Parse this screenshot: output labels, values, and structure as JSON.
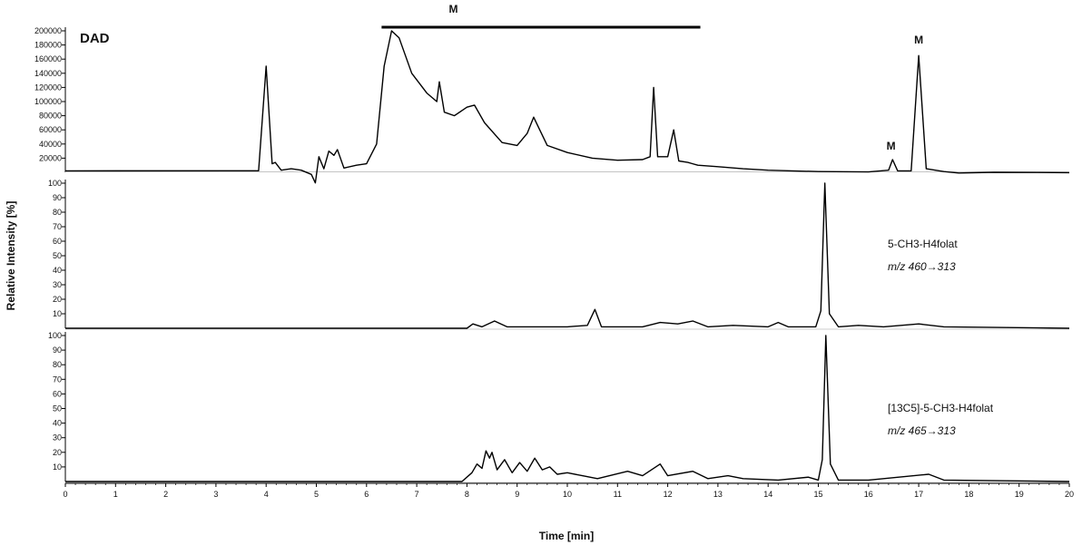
{
  "chart_data": {
    "type": "line",
    "xlabel": "Time [min]",
    "ylabel": "Relative Intensity [%]",
    "xlim": [
      0,
      20
    ],
    "x_ticks": [
      "0",
      "1",
      "2",
      "3",
      "4",
      "5",
      "6",
      "7",
      "8",
      "9",
      "10",
      "11",
      "12",
      "13",
      "14",
      "15",
      "16",
      "17",
      "18",
      "19",
      "20"
    ],
    "line_color": "#000000",
    "panels": [
      {
        "id": "dad",
        "title": "DAD",
        "ylim": [
          0,
          200000
        ],
        "y_ticks": [
          "20000",
          "40000",
          "60000",
          "80000",
          "100000",
          "120000",
          "140000",
          "160000",
          "180000",
          "200000"
        ],
        "baseline": 2000,
        "series": [
          {
            "x": 0,
            "y": 2000
          },
          {
            "x": 3.85,
            "y": 2200
          },
          {
            "x": 4.0,
            "y": 150000
          },
          {
            "x": 4.12,
            "y": 12000
          },
          {
            "x": 4.18,
            "y": 14000
          },
          {
            "x": 4.3,
            "y": 3000
          },
          {
            "x": 4.5,
            "y": 5000
          },
          {
            "x": 4.7,
            "y": 3000
          },
          {
            "x": 4.9,
            "y": -3000
          },
          {
            "x": 4.98,
            "y": -15000
          },
          {
            "x": 5.05,
            "y": 22000
          },
          {
            "x": 5.15,
            "y": 5000
          },
          {
            "x": 5.25,
            "y": 30000
          },
          {
            "x": 5.35,
            "y": 24000
          },
          {
            "x": 5.42,
            "y": 32000
          },
          {
            "x": 5.55,
            "y": 6000
          },
          {
            "x": 5.8,
            "y": 10000
          },
          {
            "x": 6.0,
            "y": 12000
          },
          {
            "x": 6.2,
            "y": 40000
          },
          {
            "x": 6.35,
            "y": 150000
          },
          {
            "x": 6.5,
            "y": 200000
          },
          {
            "x": 6.65,
            "y": 190000
          },
          {
            "x": 6.9,
            "y": 140000
          },
          {
            "x": 7.2,
            "y": 112000
          },
          {
            "x": 7.4,
            "y": 100000
          },
          {
            "x": 7.45,
            "y": 128000
          },
          {
            "x": 7.55,
            "y": 85000
          },
          {
            "x": 7.75,
            "y": 80000
          },
          {
            "x": 8.0,
            "y": 92000
          },
          {
            "x": 8.15,
            "y": 95000
          },
          {
            "x": 8.35,
            "y": 70000
          },
          {
            "x": 8.7,
            "y": 42000
          },
          {
            "x": 9.0,
            "y": 38000
          },
          {
            "x": 9.2,
            "y": 55000
          },
          {
            "x": 9.33,
            "y": 78000
          },
          {
            "x": 9.45,
            "y": 60000
          },
          {
            "x": 9.6,
            "y": 38000
          },
          {
            "x": 10.0,
            "y": 28000
          },
          {
            "x": 10.5,
            "y": 20000
          },
          {
            "x": 11.0,
            "y": 17000
          },
          {
            "x": 11.5,
            "y": 18000
          },
          {
            "x": 11.65,
            "y": 22000
          },
          {
            "x": 11.72,
            "y": 120000
          },
          {
            "x": 11.8,
            "y": 22000
          },
          {
            "x": 12.0,
            "y": 22000
          },
          {
            "x": 12.12,
            "y": 60000
          },
          {
            "x": 12.22,
            "y": 16000
          },
          {
            "x": 12.4,
            "y": 14000
          },
          {
            "x": 12.6,
            "y": 10000
          },
          {
            "x": 13.0,
            "y": 8000
          },
          {
            "x": 13.5,
            "y": 5000
          },
          {
            "x": 14.0,
            "y": 3000
          },
          {
            "x": 15.0,
            "y": 1000
          },
          {
            "x": 16.0,
            "y": 500
          },
          {
            "x": 16.4,
            "y": 3000
          },
          {
            "x": 16.48,
            "y": 18000
          },
          {
            "x": 16.58,
            "y": 2000
          },
          {
            "x": 16.85,
            "y": 2000
          },
          {
            "x": 17.0,
            "y": 165000
          },
          {
            "x": 17.15,
            "y": 5000
          },
          {
            "x": 17.5,
            "y": 1000
          },
          {
            "x": 17.8,
            "y": -1000
          },
          {
            "x": 18.5,
            "y": 0
          },
          {
            "x": 20,
            "y": -500
          }
        ],
        "annotations": [
          {
            "text": "M",
            "x": 7.73,
            "y_label": "bar",
            "x_start": 6.3,
            "x_end": 12.65
          },
          {
            "text": "M",
            "x": 16.45,
            "y": 32000
          },
          {
            "text": "M",
            "x": 17.0,
            "y": 182000
          }
        ]
      },
      {
        "id": "ms1",
        "ylim": [
          0,
          100
        ],
        "y_ticks": [
          "10",
          "20",
          "30",
          "40",
          "50",
          "60",
          "70",
          "80",
          "90",
          "100"
        ],
        "annotation_lines": [
          "5-CH3-H4folat",
          "m/z 460→313"
        ],
        "series": [
          {
            "x": 0,
            "y": 0
          },
          {
            "x": 8.0,
            "y": 0
          },
          {
            "x": 8.12,
            "y": 3
          },
          {
            "x": 8.3,
            "y": 1
          },
          {
            "x": 8.55,
            "y": 5
          },
          {
            "x": 8.8,
            "y": 1
          },
          {
            "x": 9.2,
            "y": 1
          },
          {
            "x": 10.0,
            "y": 1
          },
          {
            "x": 10.4,
            "y": 2
          },
          {
            "x": 10.55,
            "y": 13
          },
          {
            "x": 10.68,
            "y": 1
          },
          {
            "x": 11.5,
            "y": 1
          },
          {
            "x": 11.85,
            "y": 4
          },
          {
            "x": 12.2,
            "y": 3
          },
          {
            "x": 12.5,
            "y": 5
          },
          {
            "x": 12.8,
            "y": 1
          },
          {
            "x": 13.3,
            "y": 2
          },
          {
            "x": 14.0,
            "y": 1
          },
          {
            "x": 14.2,
            "y": 4
          },
          {
            "x": 14.4,
            "y": 1
          },
          {
            "x": 14.95,
            "y": 1
          },
          {
            "x": 15.05,
            "y": 12
          },
          {
            "x": 15.13,
            "y": 100
          },
          {
            "x": 15.22,
            "y": 10
          },
          {
            "x": 15.4,
            "y": 1
          },
          {
            "x": 15.8,
            "y": 2
          },
          {
            "x": 16.3,
            "y": 1
          },
          {
            "x": 17.0,
            "y": 3
          },
          {
            "x": 17.5,
            "y": 1
          },
          {
            "x": 20,
            "y": 0
          }
        ]
      },
      {
        "id": "ms2",
        "ylim": [
          0,
          100
        ],
        "y_ticks": [
          "10",
          "20",
          "30",
          "40",
          "50",
          "60",
          "70",
          "80",
          "90",
          "100"
        ],
        "annotation_lines": [
          "[13C5]-5-CH3-H4folat",
          "m/z 465→313"
        ],
        "series": [
          {
            "x": 0,
            "y": 0
          },
          {
            "x": 7.9,
            "y": 0
          },
          {
            "x": 8.1,
            "y": 6
          },
          {
            "x": 8.2,
            "y": 12
          },
          {
            "x": 8.3,
            "y": 9
          },
          {
            "x": 8.38,
            "y": 21
          },
          {
            "x": 8.45,
            "y": 16
          },
          {
            "x": 8.5,
            "y": 20
          },
          {
            "x": 8.6,
            "y": 8
          },
          {
            "x": 8.75,
            "y": 15
          },
          {
            "x": 8.9,
            "y": 6
          },
          {
            "x": 9.05,
            "y": 13
          },
          {
            "x": 9.2,
            "y": 7
          },
          {
            "x": 9.35,
            "y": 16
          },
          {
            "x": 9.5,
            "y": 8
          },
          {
            "x": 9.65,
            "y": 10
          },
          {
            "x": 9.8,
            "y": 5
          },
          {
            "x": 10.0,
            "y": 6
          },
          {
            "x": 10.3,
            "y": 4
          },
          {
            "x": 10.6,
            "y": 2
          },
          {
            "x": 11.2,
            "y": 7
          },
          {
            "x": 11.5,
            "y": 4
          },
          {
            "x": 11.85,
            "y": 12
          },
          {
            "x": 12.0,
            "y": 4
          },
          {
            "x": 12.5,
            "y": 7
          },
          {
            "x": 12.8,
            "y": 2
          },
          {
            "x": 13.2,
            "y": 4
          },
          {
            "x": 13.5,
            "y": 2
          },
          {
            "x": 14.2,
            "y": 1
          },
          {
            "x": 14.8,
            "y": 3
          },
          {
            "x": 15.0,
            "y": 1
          },
          {
            "x": 15.08,
            "y": 15
          },
          {
            "x": 15.15,
            "y": 100
          },
          {
            "x": 15.24,
            "y": 12
          },
          {
            "x": 15.4,
            "y": 1
          },
          {
            "x": 16.0,
            "y": 1
          },
          {
            "x": 17.2,
            "y": 5
          },
          {
            "x": 17.5,
            "y": 1
          },
          {
            "x": 20,
            "y": 0
          }
        ]
      }
    ]
  }
}
